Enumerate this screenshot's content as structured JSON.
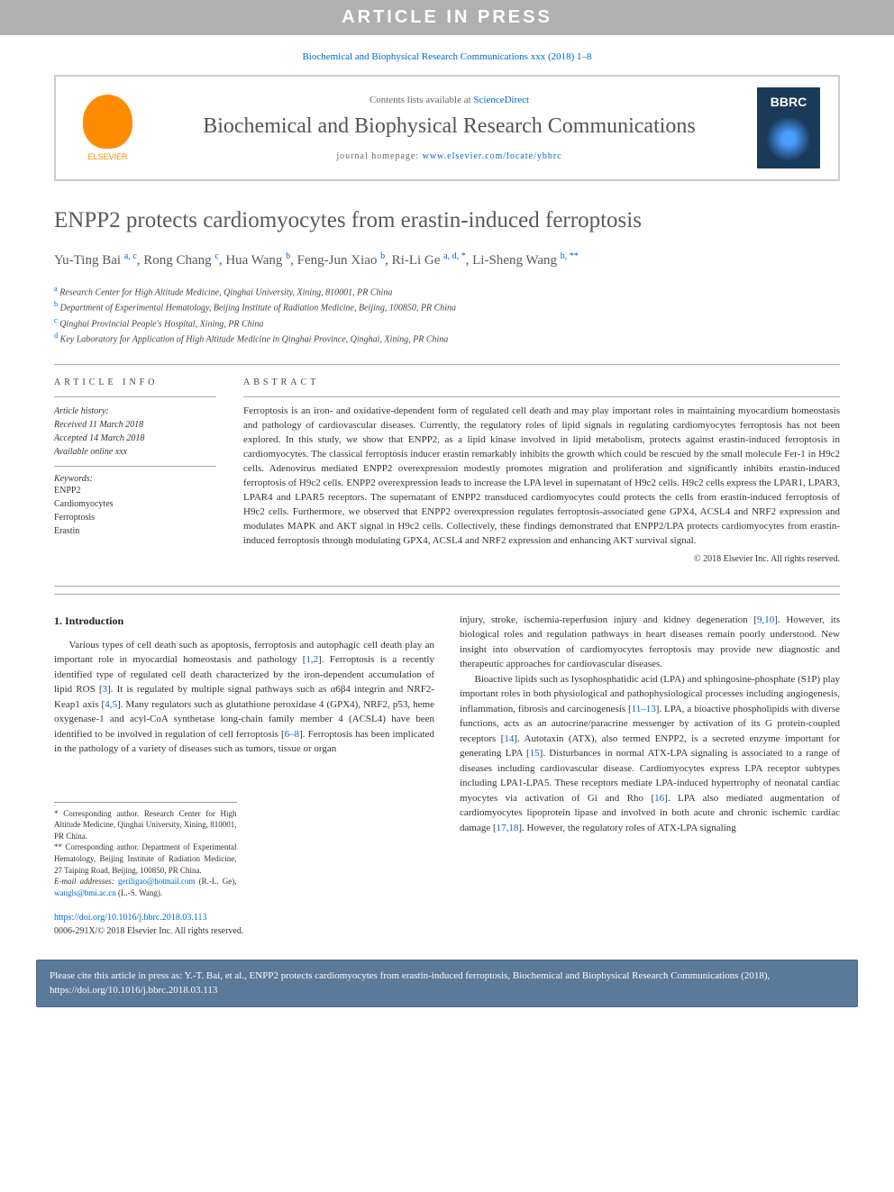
{
  "banner": "ARTICLE IN PRESS",
  "journal_ref": "Biochemical and Biophysical Research Communications xxx (2018) 1–8",
  "header": {
    "contents_prefix": "Contents lists available at ",
    "contents_link": "ScienceDirect",
    "journal_title": "Biochemical and Biophysical Research Communications",
    "homepage_prefix": "journal homepage: ",
    "homepage_link": "www.elsevier.com/locate/ybbrc",
    "elsevier_label": "ELSEVIER",
    "bbrc_label": "BBRC"
  },
  "title": "ENPP2 protects cardiomyocytes from erastin-induced ferroptosis",
  "authors_html": "Yu-Ting Bai <sup>a, c</sup>, Rong Chang <sup>c</sup>, Hua Wang <sup>b</sup>, Feng-Jun Xiao <sup>b</sup>, Ri-Li Ge <sup>a, d, *</sup>, Li-Sheng Wang <sup>b, **</sup>",
  "affiliations": [
    {
      "sup": "a",
      "text": "Research Center for High Altitude Medicine, Qinghai University, Xining, 810001, PR China"
    },
    {
      "sup": "b",
      "text": "Department of Experimental Hematology, Beijing Institute of Radiation Medicine, Beijing, 100850, PR China"
    },
    {
      "sup": "c",
      "text": "Qinghai Provincial People's Hospital, Xining, PR China"
    },
    {
      "sup": "d",
      "text": "Key Laboratory for Application of High Altitude Medicine in Qinghai Province, Qinghai, Xining, PR China"
    }
  ],
  "info": {
    "heading": "ARTICLE INFO",
    "history_label": "Article history:",
    "received": "Received 11 March 2018",
    "accepted": "Accepted 14 March 2018",
    "available": "Available online xxx",
    "keywords_label": "Keywords:",
    "keywords": [
      "ENPP2",
      "Cardiomyocytes",
      "Ferroptosis",
      "Erastin"
    ]
  },
  "abstract": {
    "heading": "ABSTRACT",
    "text": "Ferroptosis is an iron- and oxidative-dependent form of regulated cell death and may play important roles in maintaining myocardium homeostasis and pathology of cardiovascular diseases. Currently, the regulatory roles of lipid signals in regulating cardiomyocytes ferroptosis has not been explored. In this study, we show that ENPP2, as a lipid kinase involved in lipid metabolism, protects against erastin-induced ferroptosis in cardiomyocytes. The classical ferroptosis inducer erastin remarkably inhibits the growth which could be rescued by the small molecule Fer-1 in H9c2 cells. Adenovirus mediated ENPP2 overexpression modestly promotes migration and proliferation and significantly inhibits erastin-induced ferroptosis of H9c2 cells. ENPP2 overexpression leads to increase the LPA level in supernatant of H9c2 cells. H9c2 cells express the LPAR1, LPAR3, LPAR4 and LPAR5 receptors. The supernatant of ENPP2 transduced cardiomyocytes could protects the cells from erastin-induced ferroptosis of H9c2 cells. Furthermore, we observed that ENPP2 overexpression regulates ferroptosis-associated gene GPX4, ACSL4 and NRF2 expression and modulates MAPK and AKT signal in H9c2 cells. Collectively, these findings demonstrated that ENPP2/LPA protects cardiomyocytes from erastin-induced ferroptosis through modulating GPX4, ACSL4 and NRF2 expression and enhancing AKT survival signal.",
    "copyright": "© 2018 Elsevier Inc. All rights reserved."
  },
  "section1_heading": "1. Introduction",
  "col1_p1": "Various types of cell death such as apoptosis, ferroptosis and autophagic cell death play an important role in myocardial homeostasis and pathology [1,2]. Ferroptosis is a recently identified type of regulated cell death characterized by the iron-dependent accumulation of lipid ROS [3]. It is regulated by multiple signal pathways such as α6β4 integrin and NRF2-Keap1 axis [4,5]. Many regulators such as glutathione peroxidase 4 (GPX4), NRF2, p53, heme oxygenase-1 and acyl-CoA synthetase long-chain family member 4 (ACSL4) have been identified to be involved in regulation of cell ferroptosis [6–8]. Ferroptosis has been implicated in the pathology of a variety of diseases such as tumors, tissue or organ",
  "col2_p1": "injury, stroke, ischemia-reperfusion injury and kidney degeneration [9,10]. However, its biological roles and regulation pathways in heart diseases remain poorly understood. New insight into observation of cardiomyocytes ferroptosis may provide new diagnostic and therapeutic approaches for cardiovascular diseases.",
  "col2_p2": "Bioactive lipids such as lysophosphatidic acid (LPA) and sphingosine-phosphate (S1P) play important roles in both physiological and pathophysiological processes including angiogenesis, inflammation, fibrosis and carcinogenesis [11–13]. LPA, a bioactive phospholipids with diverse functions, acts as an autocrine/paracrine messenger by activation of its G protein-coupled receptors [14]. Autotaxin (ATX), also termed ENPP2, is a secreted enzyme important for generating LPA [15]. Disturbances in normal ATX-LPA signaling is associated to a range of diseases including cardiovascular disease. Cardiomyocytes express LPA receptor subtypes including LPA1-LPA5. These receptors mediate LPA-induced hypertrophy of neonatal cardiac myocytes via activation of Gi and Rho [16]. LPA also mediated augmentation of cardiomyocytes lipoprotein lipase and involved in both acute and chronic ischemic cardiac damage [17,18]. However, the regulatory roles of ATX-LPA signaling",
  "footnotes": {
    "corr1": "* Corresponding author. Research Center for High Altitude Medicine, Qinghai University, Xining, 810001, PR China.",
    "corr2": "** Corresponding author. Department of Experimental Hematology, Beijing Institute of Radiation Medicine, 27 Taiping Road, Beijing, 100850, PR China.",
    "email_label": "E-mail addresses: ",
    "email1": "geriligao@hotmail.com",
    "email1_author": " (R.-L. Ge), ",
    "email2": "wangls@bmi.ac.cn",
    "email2_author": " (L.-S. Wang)."
  },
  "doi": {
    "link": "https://doi.org/10.1016/j.bbrc.2018.03.113",
    "issn": "0006-291X/© 2018 Elsevier Inc. All rights reserved."
  },
  "cite_box": "Please cite this article in press as: Y.-T. Bai, et al., ENPP2 protects cardiomyocytes from erastin-induced ferroptosis, Biochemical and Biophysical Research Communications (2018), https://doi.org/10.1016/j.bbrc.2018.03.113",
  "colors": {
    "banner_bg": "#b0b0b0",
    "link": "#0066cc",
    "elsevier_orange": "#ff8c00",
    "bbrc_bg": "#1a3a5a",
    "citebox_bg": "#5a7a9a",
    "text_gray": "#5a5a5a"
  }
}
